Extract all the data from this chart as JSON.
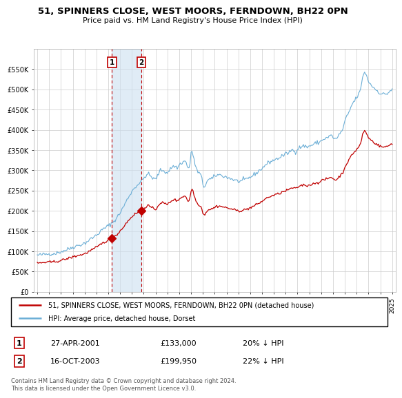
{
  "title": "51, SPINNERS CLOSE, WEST MOORS, FERNDOWN, BH22 0PN",
  "subtitle": "Price paid vs. HM Land Registry's House Price Index (HPI)",
  "ylim": [
    0,
    600000
  ],
  "yticks": [
    0,
    50000,
    100000,
    150000,
    200000,
    250000,
    300000,
    350000,
    400000,
    450000,
    500000,
    550000
  ],
  "ytick_labels": [
    "£0",
    "£50K",
    "£100K",
    "£150K",
    "£200K",
    "£250K",
    "£300K",
    "£350K",
    "£400K",
    "£450K",
    "£500K",
    "£550K"
  ],
  "hpi_color": "#6baed6",
  "price_color": "#c00000",
  "sale1_x": 2001.32,
  "sale1_y": 133000,
  "sale2_x": 2003.79,
  "sale2_y": 199950,
  "sale1_label": "1",
  "sale2_label": "2",
  "sale1_date": "27-APR-2001",
  "sale2_date": "16-OCT-2003",
  "sale1_price": "£133,000",
  "sale2_price": "£199,950",
  "sale1_hpi": "20% ↓ HPI",
  "sale2_hpi": "22% ↓ HPI",
  "legend_label1": "51, SPINNERS CLOSE, WEST MOORS, FERNDOWN, BH22 0PN (detached house)",
  "legend_label2": "HPI: Average price, detached house, Dorset",
  "footer": "Contains HM Land Registry data © Crown copyright and database right 2024.\nThis data is licensed under the Open Government Licence v3.0.",
  "shade_x1": 2001.32,
  "shade_x2": 2003.79,
  "xlim_left": 1994.7,
  "xlim_right": 2025.3
}
